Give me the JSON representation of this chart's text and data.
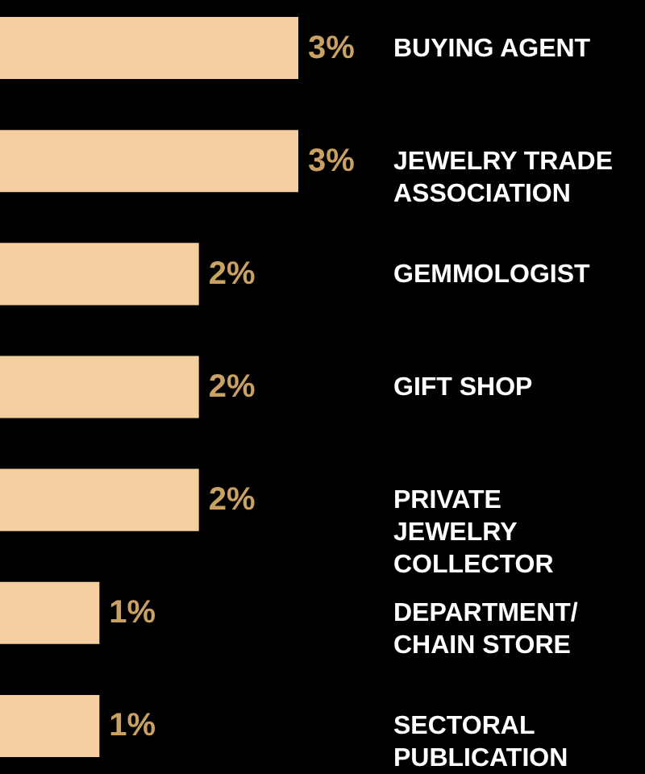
{
  "chart_data": {
    "type": "bar",
    "orientation": "horizontal",
    "categories": [
      "BUYING AGENT",
      "JEWELRY TRADE ASSOCIATION",
      "GEMMOLOGIST",
      "GIFT SHOP",
      "PRIVATE JEWELRY COLLECTOR",
      "DEPARTMENT/ CHAIN STORE",
      "SECTORAL PUBLICATION"
    ],
    "values": [
      3,
      3,
      2,
      2,
      2,
      1,
      1
    ],
    "value_labels": [
      "3%",
      "3%",
      "2%",
      "2%",
      "2%",
      "1%",
      "1%"
    ],
    "color": "#f5cf9f",
    "xlim": [
      0,
      3
    ]
  }
}
